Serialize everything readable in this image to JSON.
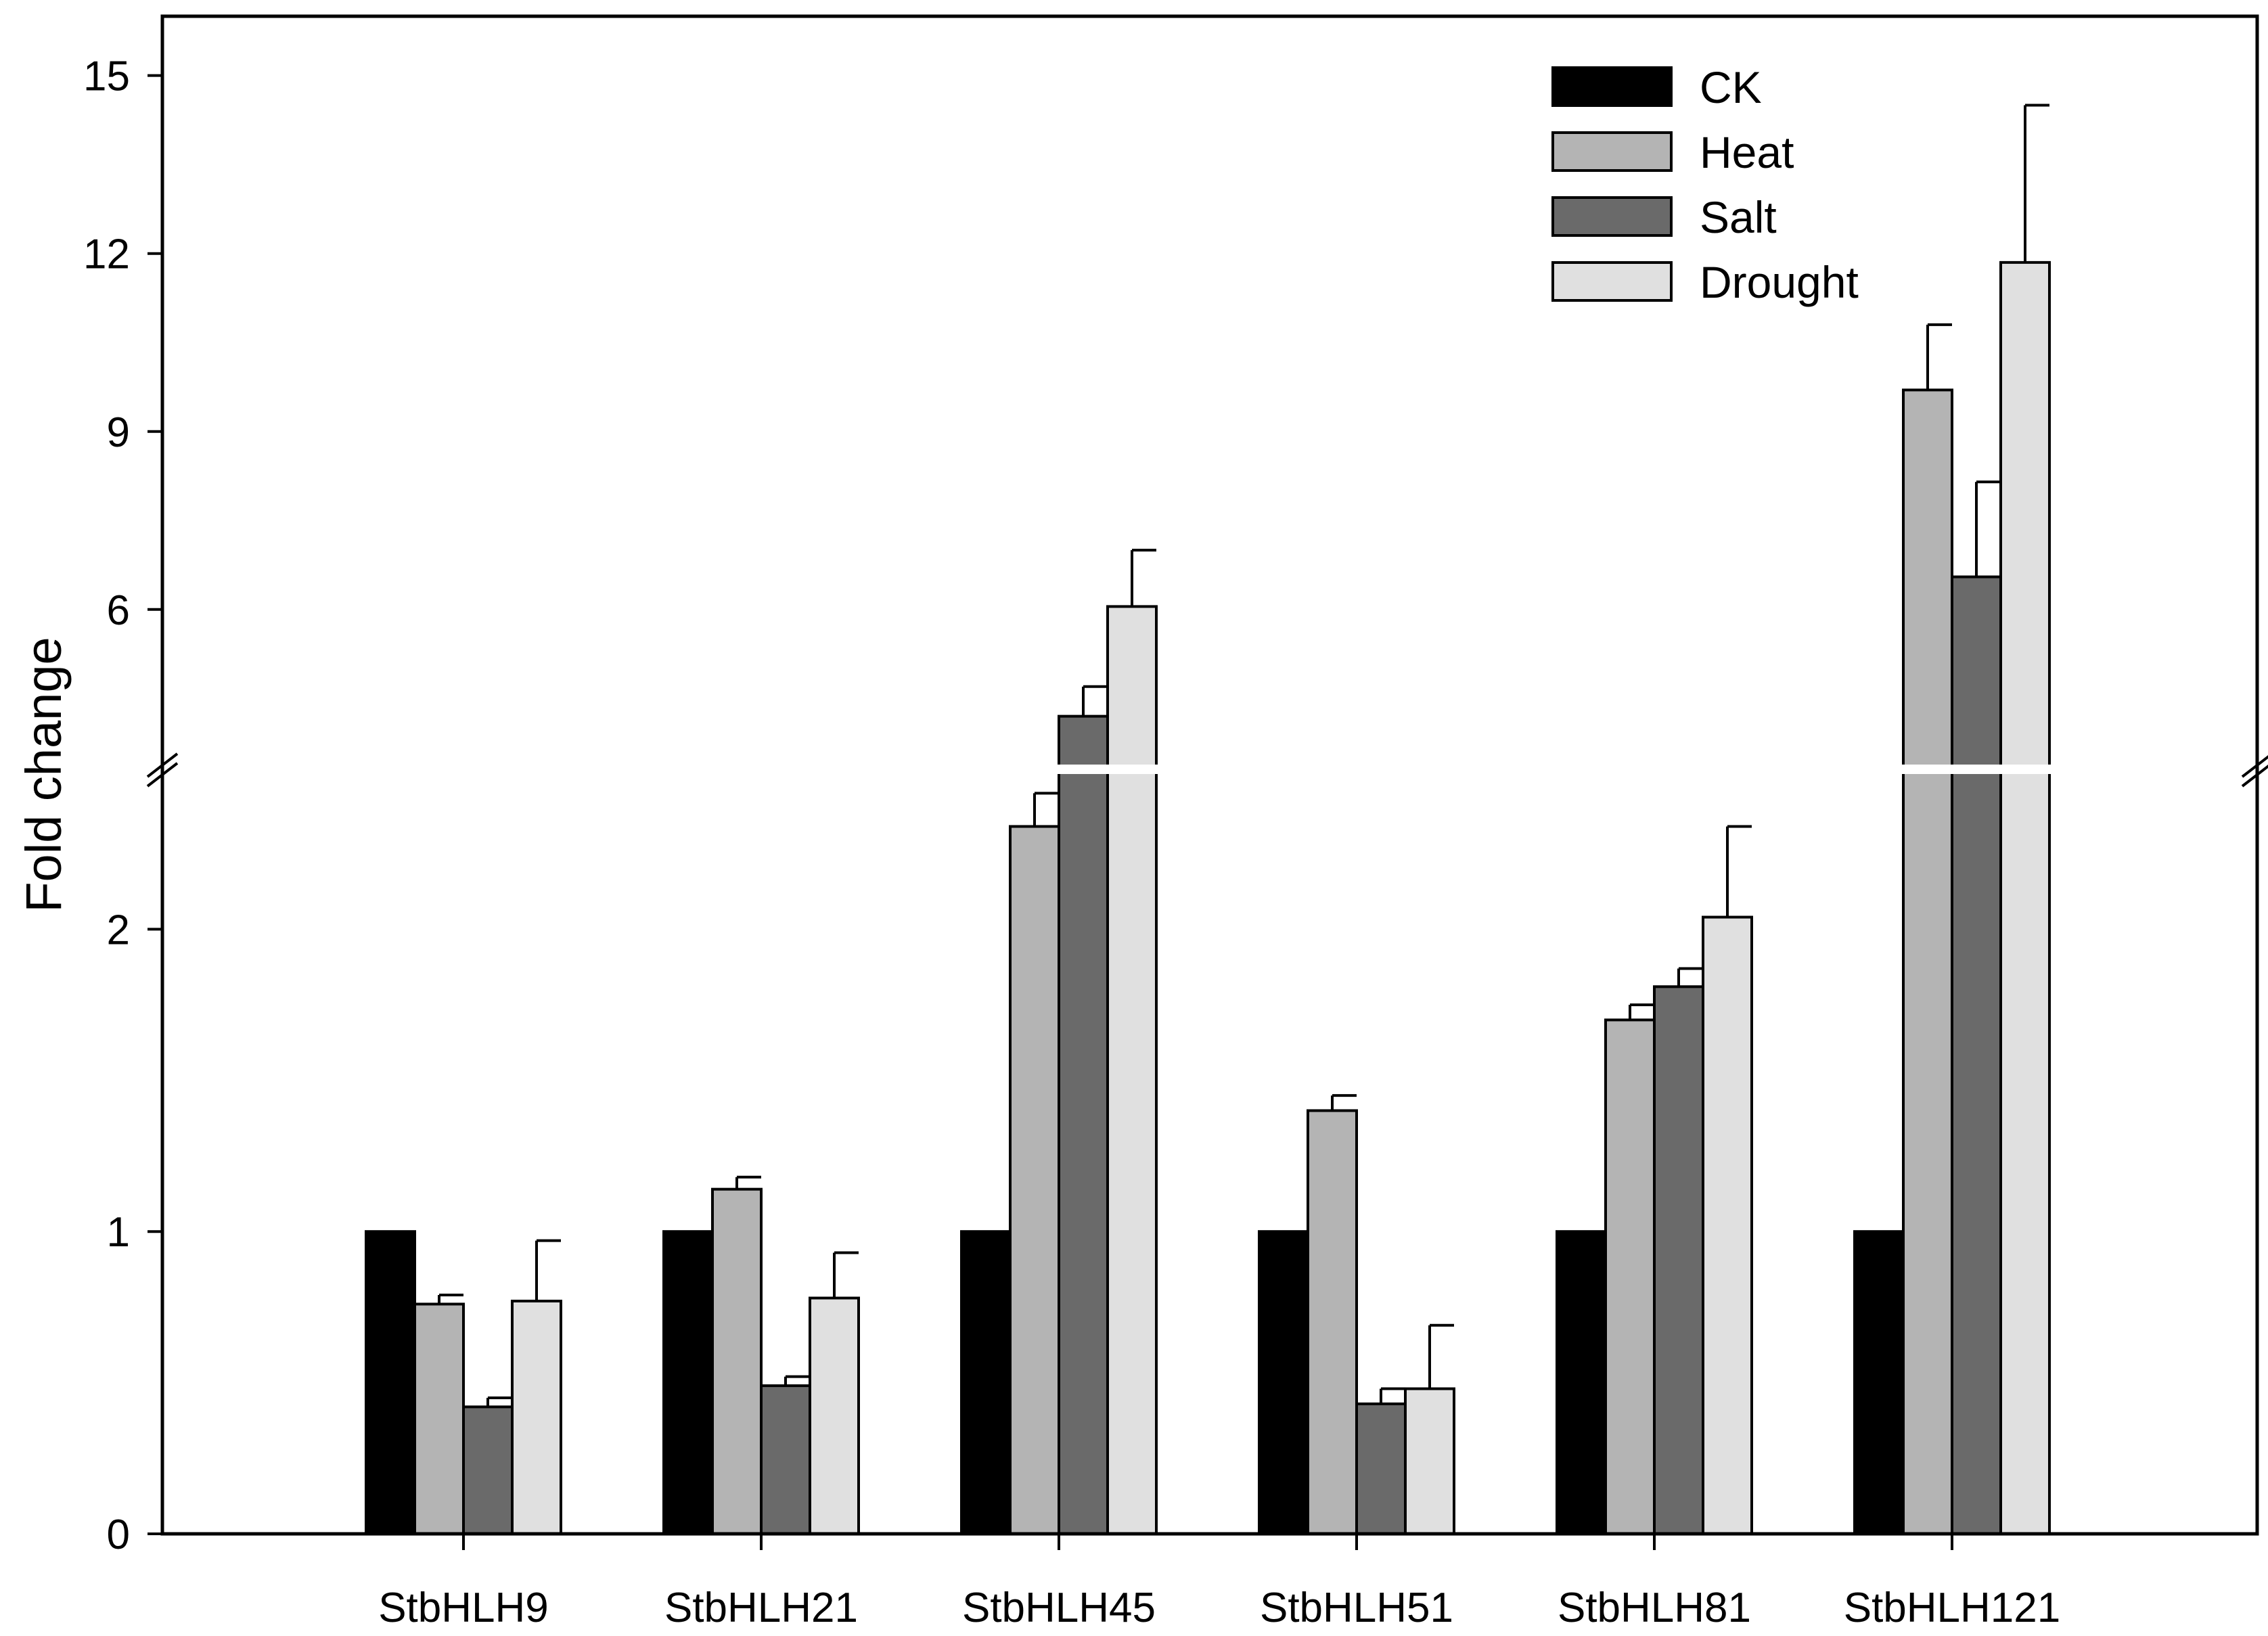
{
  "chart_data": {
    "type": "bar",
    "title": "",
    "xlabel": "",
    "ylabel": "Fold change",
    "categories": [
      "StbHLH9",
      "StbHLH21",
      "StbHLH45",
      "StbHLH51",
      "StbHLH81",
      "StbHLH121"
    ],
    "series": [
      {
        "name": "CK",
        "color": "#000000",
        "values": [
          1,
          1,
          1,
          1,
          1,
          1
        ],
        "errors": [
          0,
          0,
          0,
          0,
          0,
          0
        ]
      },
      {
        "name": "Heat",
        "color": "#b4b4b4",
        "values": [
          0.76,
          1.14,
          2.34,
          1.4,
          1.7,
          9.7
        ],
        "errors": [
          0.03,
          0.04,
          0.11,
          0.05,
          0.05,
          1.1
        ]
      },
      {
        "name": "Salt",
        "color": "#6a6a6a",
        "values": [
          0.42,
          0.49,
          4.2,
          0.43,
          1.81,
          6.55
        ],
        "errors": [
          0.03,
          0.03,
          0.5,
          0.05,
          0.06,
          1.6
        ]
      },
      {
        "name": "Drought",
        "color": "#e0e0e0",
        "values": [
          0.77,
          0.78,
          6.05,
          0.48,
          2.04,
          11.85
        ],
        "errors": [
          0.2,
          0.15,
          0.95,
          0.21,
          0.3,
          2.65
        ]
      }
    ],
    "y_axis_break": true,
    "lower_segment": {
      "ylim": [
        0,
        2.5
      ],
      "ticks": [
        0,
        1,
        2
      ],
      "tick_labels": [
        "0",
        "1",
        "2"
      ]
    },
    "upper_segment": {
      "ylim": [
        3.5,
        16
      ],
      "ticks": [
        6,
        9,
        12,
        15
      ],
      "tick_labels": [
        "6",
        "9",
        "12",
        "15"
      ]
    },
    "legend": {
      "position": "top-right",
      "entries": [
        "CK",
        "Heat",
        "Salt",
        "Drought"
      ]
    },
    "grid": false
  }
}
